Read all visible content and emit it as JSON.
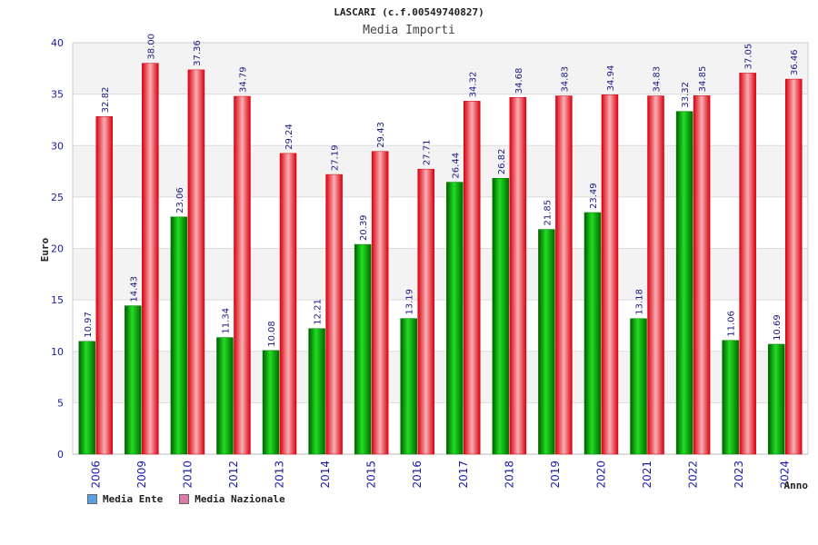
{
  "chart_data": {
    "type": "bar",
    "title": "LASCARI (c.f.00549740827)",
    "subtitle": "Media Importi",
    "xlabel": "Anno",
    "ylabel": "Euro",
    "ylim": [
      0,
      40
    ],
    "yticks": [
      0,
      5,
      10,
      15,
      20,
      25,
      30,
      35,
      40
    ],
    "categories": [
      "2006",
      "2009",
      "2010",
      "2012",
      "2013",
      "2014",
      "2015",
      "2016",
      "2017",
      "2018",
      "2019",
      "2020",
      "2021",
      "2022",
      "2023",
      "2024"
    ],
    "series": [
      {
        "name": "Media Ente",
        "color": "#00aa00",
        "legend_color": "#5aa0e6",
        "values": [
          10.97,
          14.43,
          23.06,
          11.34,
          10.08,
          12.21,
          20.39,
          13.19,
          26.44,
          26.82,
          21.85,
          23.49,
          13.18,
          33.32,
          11.06,
          10.69
        ],
        "labels": [
          "10.97",
          "14.43",
          "23.06",
          "11.34",
          "10.08",
          "12.21",
          "20.39",
          "13.19",
          "26.44",
          "26.82",
          "21.85",
          "23.49",
          "13.18",
          "33.32",
          "11.06",
          "10.69"
        ]
      },
      {
        "name": "Media Nazionale",
        "color": "#ee1c24",
        "legend_color": "#e07aa8",
        "values": [
          32.82,
          38.0,
          37.36,
          34.79,
          29.24,
          27.19,
          29.43,
          27.71,
          34.32,
          34.68,
          34.83,
          34.94,
          34.83,
          34.85,
          37.05,
          36.46
        ],
        "labels": [
          "32.82",
          "38.00",
          "37.36",
          "34.79",
          "29.24",
          "27.19",
          "29.43",
          "27.71",
          "34.32",
          "34.68",
          "34.83",
          "34.94",
          "34.83",
          "34.85",
          "37.05",
          "36.46"
        ]
      }
    ],
    "grid": true,
    "legend_position": "bottom-left"
  }
}
